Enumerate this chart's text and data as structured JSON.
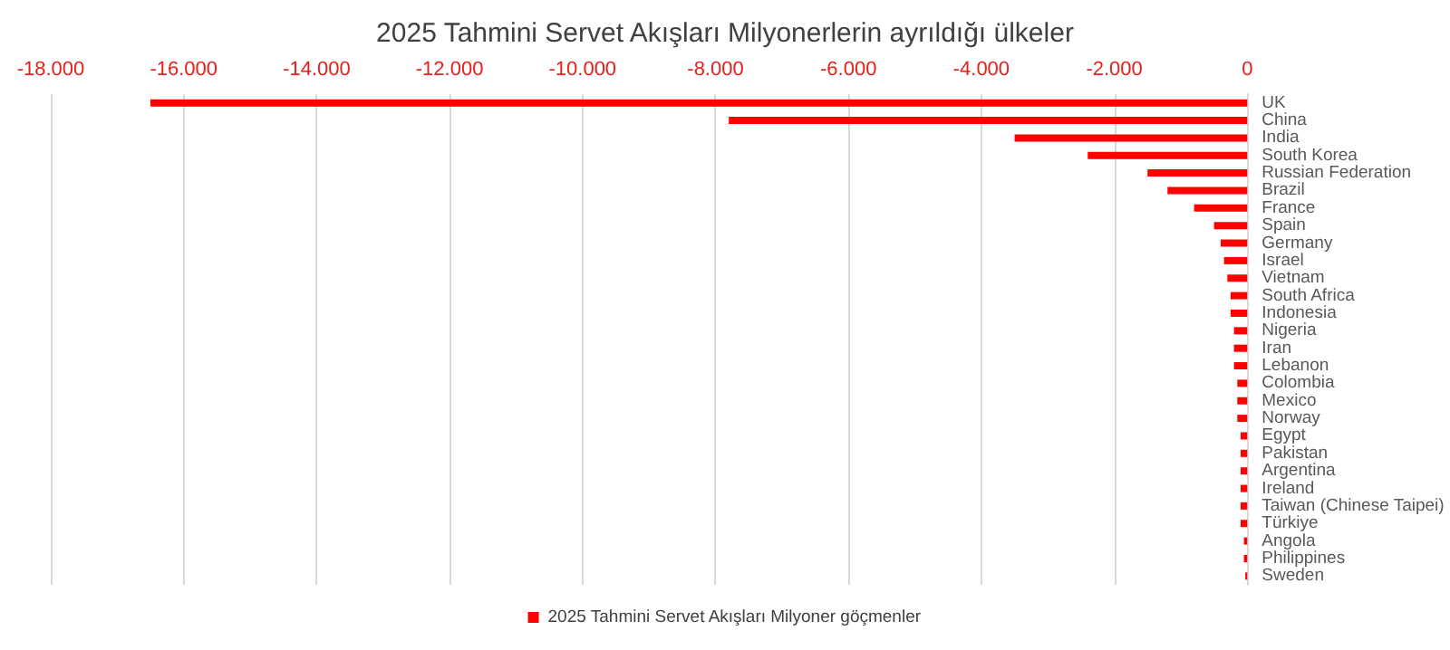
{
  "chart_data": {
    "type": "bar",
    "orientation": "horizontal",
    "title": "2025 Tahmini Servet Akışları Milyonerlerin ayrıldığı ülkeler",
    "categories": [
      "UK",
      "China",
      "India",
      "South Korea",
      "Russian Federation",
      "Brazil",
      "France",
      "Spain",
      "Germany",
      "Israel",
      "Vietnam",
      "South Africa",
      "Indonesia",
      "Nigeria",
      "Iran",
      "Lebanon",
      "Colombia",
      "Mexico",
      "Norway",
      "Egypt",
      "Pakistan",
      "Argentina",
      "Ireland",
      "Taiwan (Chinese Taipei)",
      "Türkiye",
      "Angola",
      "Philippines",
      "Sweden"
    ],
    "series": [
      {
        "name": "2025 Tahmini Servet Akışları Milyoner göçmenler",
        "color": "#ff0000",
        "values": [
          -16500,
          -7800,
          -3500,
          -2400,
          -1500,
          -1200,
          -800,
          -500,
          -400,
          -350,
          -300,
          -250,
          -250,
          -200,
          -200,
          -200,
          -150,
          -150,
          -150,
          -100,
          -100,
          -100,
          -100,
          -100,
          -100,
          -50,
          -50,
          -30
        ]
      }
    ],
    "xlim": [
      -18000,
      0
    ],
    "xticks": [
      {
        "value": -18000,
        "label": "-18.000"
      },
      {
        "value": -16000,
        "label": "-16.000"
      },
      {
        "value": -14000,
        "label": "-14.000"
      },
      {
        "value": -12000,
        "label": "-12.000"
      },
      {
        "value": -10000,
        "label": "-10.000"
      },
      {
        "value": -8000,
        "label": "-8.000"
      },
      {
        "value": -6000,
        "label": "-6.000"
      },
      {
        "value": -4000,
        "label": "-4.000"
      },
      {
        "value": -2000,
        "label": "-2.000"
      },
      0
    ],
    "grid": "x",
    "legend": "bottom"
  }
}
